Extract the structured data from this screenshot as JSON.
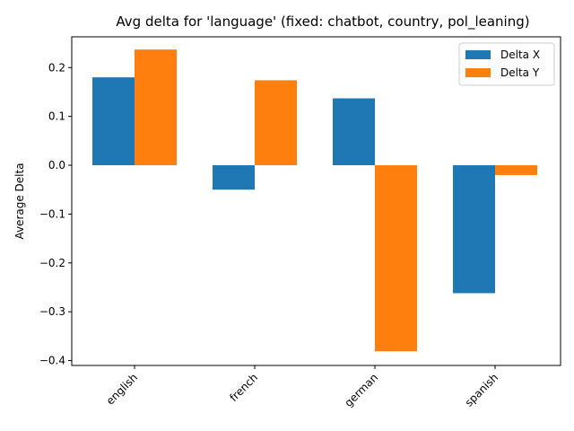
{
  "chart_data": {
    "type": "bar",
    "title": "Avg delta for 'language' (fixed: chatbot, country, pol_leaning)",
    "xlabel": "",
    "ylabel": "Average Delta",
    "categories": [
      "english",
      "french",
      "german",
      "spanish"
    ],
    "series": [
      {
        "name": "Delta X",
        "color": "#1f77b4",
        "values": [
          0.18,
          -0.05,
          0.137,
          -0.262
        ]
      },
      {
        "name": "Delta Y",
        "color": "#ff7f0e",
        "values": [
          0.237,
          0.174,
          -0.381,
          -0.02
        ]
      }
    ],
    "ylim": [
      -0.41,
      0.263
    ],
    "yticks": [
      -0.4,
      -0.3,
      -0.2,
      -0.1,
      0.0,
      0.1,
      0.2
    ],
    "ytick_labels": [
      "−0.4",
      "−0.3",
      "−0.2",
      "−0.1",
      "0.0",
      "0.1",
      "0.2"
    ],
    "legend_position": "top-right",
    "grid": false
  }
}
